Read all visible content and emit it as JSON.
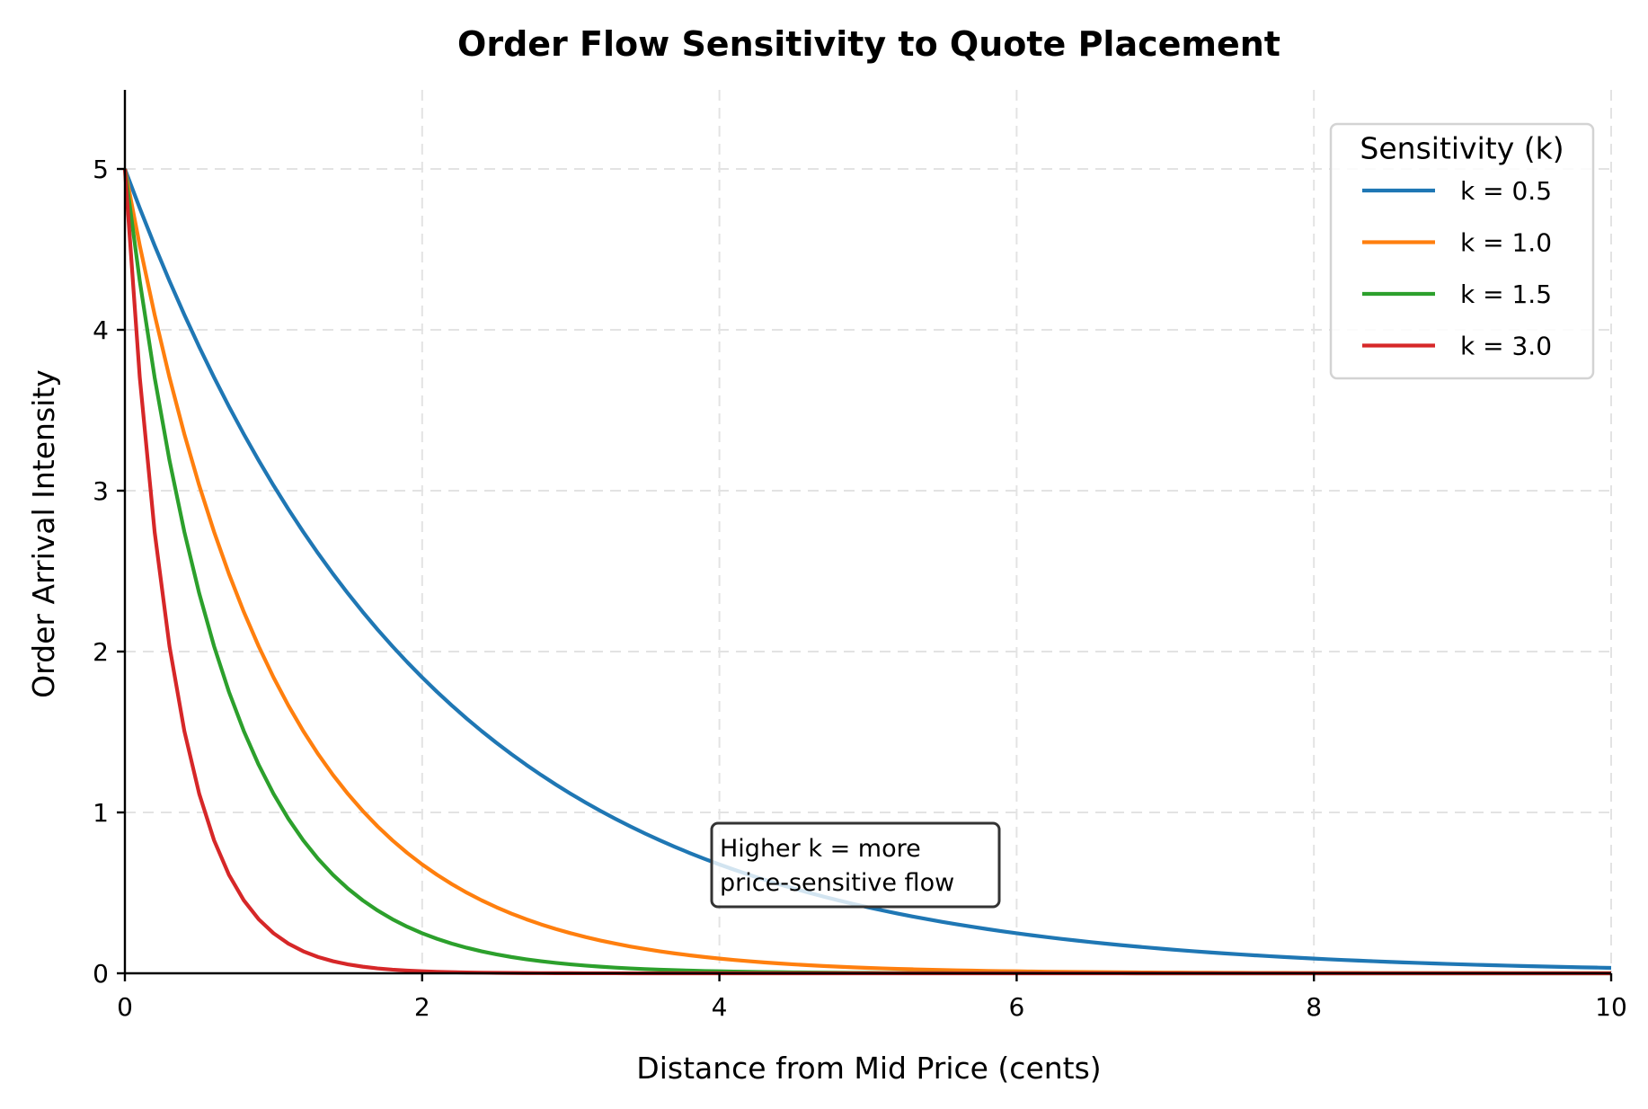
{
  "chart_data": {
    "type": "line",
    "title": "Order Flow Sensitivity to Quote Placement",
    "xlabel": "Distance from Mid Price (cents)",
    "ylabel": "Order Arrival Intensity",
    "xlim": [
      0,
      10
    ],
    "ylim": [
      0,
      5.5
    ],
    "xticks": [
      0,
      2,
      4,
      6,
      8,
      10
    ],
    "yticks": [
      0,
      1,
      2,
      3,
      4,
      5
    ],
    "grid": true,
    "legend_position": "upper right",
    "legend_title": "Sensitivity (k)",
    "formula": "A * exp(-k * x)",
    "amplitude": 5,
    "x": [
      0,
      0.5,
      1,
      1.5,
      2,
      3,
      4,
      5,
      6,
      7,
      8,
      9,
      10
    ],
    "series": [
      {
        "name": "k = 0.5",
        "k": 0.5,
        "color": "#1f77b4",
        "values": [
          5.0,
          3.89,
          3.03,
          2.36,
          1.84,
          1.12,
          0.68,
          0.41,
          0.25,
          0.15,
          0.09,
          0.06,
          0.03
        ]
      },
      {
        "name": "k = 1.0",
        "k": 1.0,
        "color": "#ff7f0e",
        "values": [
          5.0,
          3.03,
          1.84,
          1.12,
          0.68,
          0.25,
          0.09,
          0.03,
          0.01,
          0.0,
          0.0,
          0.0,
          0.0
        ]
      },
      {
        "name": "k = 1.5",
        "k": 1.5,
        "color": "#2ca02c",
        "values": [
          5.0,
          2.36,
          1.12,
          0.53,
          0.25,
          0.06,
          0.01,
          0.0,
          0.0,
          0.0,
          0.0,
          0.0,
          0.0
        ]
      },
      {
        "name": "k = 3.0",
        "k": 3.0,
        "color": "#d62728",
        "values": [
          5.0,
          1.12,
          0.25,
          0.06,
          0.01,
          0.0,
          0.0,
          0.0,
          0.0,
          0.0,
          0.0,
          0.0,
          0.0
        ]
      }
    ],
    "annotations": [
      {
        "text_lines": [
          "Higher k = more",
          "price-sensitive flow"
        ],
        "x": 4.0,
        "y": 0.7
      }
    ]
  }
}
